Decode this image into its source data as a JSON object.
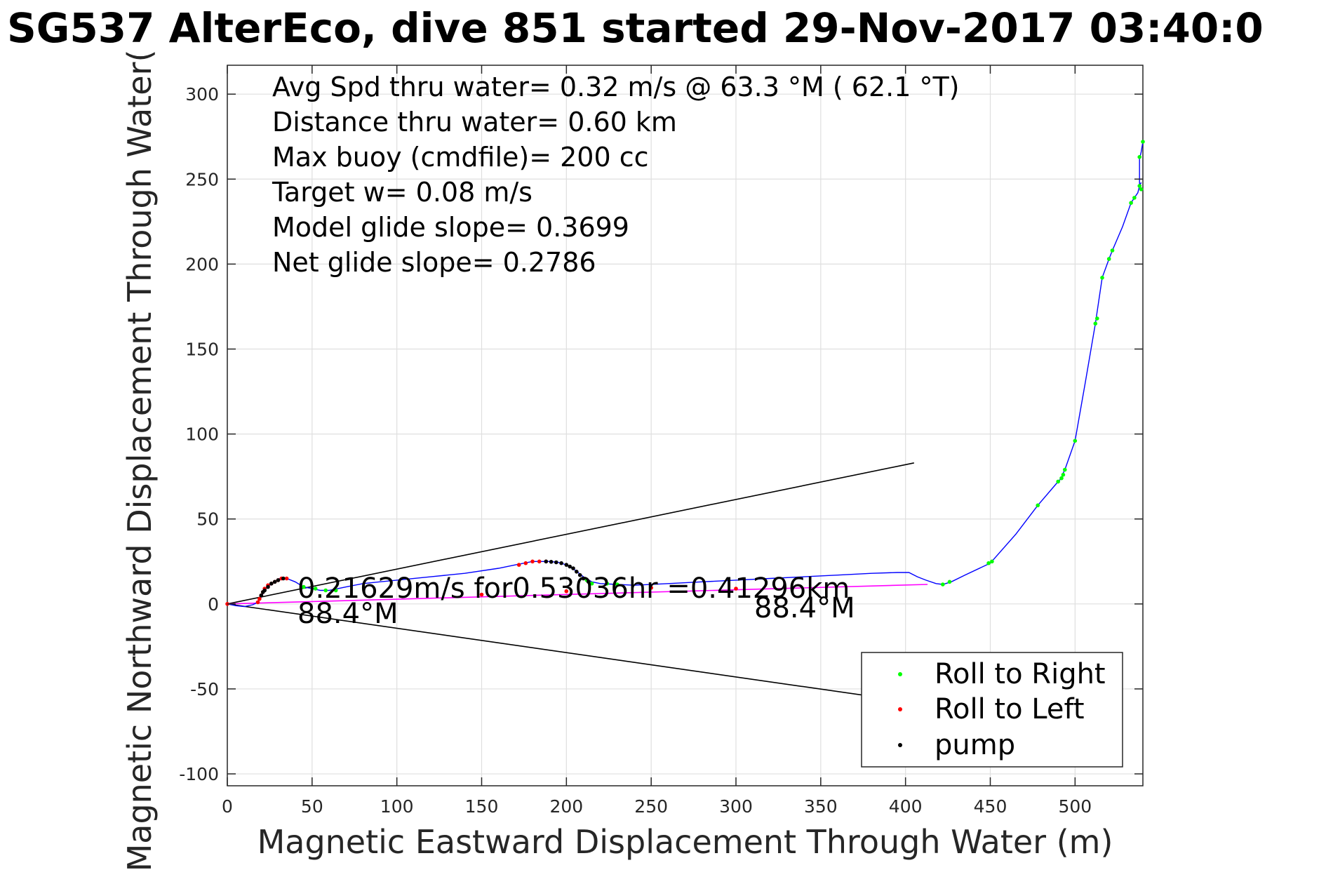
{
  "chart_data": {
    "type": "line",
    "title": "SG537 AlterEco, dive 851 started 29-Nov-2017 03:40:0",
    "xlabel": "Magnetic Eastward Displacement Through Water (m)",
    "ylabel": "Magnetic Northward Displacement Through Water(",
    "xlim": [
      0,
      540
    ],
    "ylim": [
      -107,
      317
    ],
    "xticks": [
      0,
      50,
      100,
      150,
      200,
      250,
      300,
      350,
      400,
      450,
      500
    ],
    "yticks": [
      -100,
      -50,
      0,
      50,
      100,
      150,
      200,
      250,
      300
    ],
    "grid": true,
    "legend_position": "bottom-right",
    "stats_text": [
      "Avg Spd thru water=  0.32 m/s @  63.3 °M ( 62.1 °T)",
      "Distance thru water=  0.60 km",
      "Max buoy (cmdfile)= 200 cc",
      "Target w= 0.08 m/s",
      "Model glide slope= 0.3699",
      "Net glide slope= 0.2786"
    ],
    "annotations": {
      "speed": "0.21629m/s for0.53036hr =0.41296km",
      "heading_left": "88.4°M",
      "heading_right": "88.4°M"
    },
    "track": {
      "name": "",
      "color": "#0000ff",
      "points": [
        [
          0,
          0
        ],
        [
          5,
          -1
        ],
        [
          10,
          -1.5
        ],
        [
          15,
          -0.5
        ],
        [
          18,
          1
        ],
        [
          20,
          4
        ],
        [
          22,
          8
        ],
        [
          25,
          11
        ],
        [
          28,
          13
        ],
        [
          31,
          15
        ],
        [
          35,
          15
        ],
        [
          40,
          13
        ],
        [
          45,
          10
        ],
        [
          50,
          9
        ],
        [
          55,
          8
        ],
        [
          60,
          8
        ],
        [
          70,
          10
        ],
        [
          80,
          12
        ],
        [
          90,
          13
        ],
        [
          100,
          14
        ],
        [
          120,
          16
        ],
        [
          140,
          18
        ],
        [
          160,
          21
        ],
        [
          170,
          23
        ],
        [
          175,
          24
        ],
        [
          180,
          25
        ],
        [
          185,
          25
        ],
        [
          190,
          25
        ],
        [
          195,
          24.5
        ],
        [
          200,
          23
        ],
        [
          205,
          20
        ],
        [
          210,
          16
        ],
        [
          215,
          13
        ],
        [
          220,
          12
        ],
        [
          230,
          11.5
        ],
        [
          240,
          11
        ],
        [
          260,
          12
        ],
        [
          280,
          13
        ],
        [
          300,
          14
        ],
        [
          320,
          15
        ],
        [
          340,
          16
        ],
        [
          360,
          17
        ],
        [
          380,
          18
        ],
        [
          395,
          18.5
        ],
        [
          402,
          18.5
        ],
        [
          407,
          16
        ],
        [
          412,
          14
        ],
        [
          418,
          12
        ],
        [
          422,
          11.5
        ],
        [
          427,
          13
        ],
        [
          435,
          17
        ],
        [
          450,
          24
        ],
        [
          465,
          41
        ],
        [
          478,
          58
        ],
        [
          490,
          72
        ],
        [
          492,
          74
        ],
        [
          493,
          77
        ],
        [
          494,
          79
        ],
        [
          500,
          96
        ],
        [
          506,
          130
        ],
        [
          512,
          165
        ],
        [
          516,
          192
        ],
        [
          520,
          203
        ],
        [
          522,
          208
        ],
        [
          528,
          222
        ],
        [
          533,
          236
        ],
        [
          535,
          239
        ],
        [
          537,
          242
        ],
        [
          538,
          246
        ],
        [
          539,
          248
        ],
        [
          538,
          246
        ],
        [
          538,
          262
        ],
        [
          539,
          266
        ],
        [
          540,
          272
        ]
      ]
    },
    "depth_avg_line": {
      "name": "",
      "color": "#ff00ff",
      "points": [
        [
          0,
          0
        ],
        [
          413,
          11.5
        ]
      ]
    },
    "cone_lines": {
      "color": "#000000",
      "upper": [
        [
          0,
          0
        ],
        [
          405,
          83
        ]
      ],
      "lower": [
        [
          0,
          0
        ],
        [
          405,
          -58
        ]
      ]
    },
    "series": [
      {
        "name": "Roll to Right",
        "color": "#00ff00",
        "points": [
          [
            45,
            10
          ],
          [
            52,
            9
          ],
          [
            58,
            8
          ],
          [
            64,
            8
          ],
          [
            212,
            14
          ],
          [
            215,
            12
          ],
          [
            224,
            12
          ],
          [
            230,
            11.5
          ],
          [
            422,
            11.5
          ],
          [
            426,
            13
          ],
          [
            449,
            24
          ],
          [
            451,
            25
          ],
          [
            478,
            58
          ],
          [
            490,
            72
          ],
          [
            492,
            74
          ],
          [
            493,
            76
          ],
          [
            494,
            79
          ],
          [
            500,
            96
          ],
          [
            512,
            165
          ],
          [
            513,
            168
          ],
          [
            516,
            192
          ],
          [
            520,
            203
          ],
          [
            522,
            208
          ],
          [
            533,
            236
          ],
          [
            535,
            239
          ],
          [
            538,
            246
          ],
          [
            538,
            263
          ],
          [
            540,
            272
          ],
          [
            539,
            244
          ]
        ]
      },
      {
        "name": "Roll to Left",
        "color": "#ff0000",
        "points": [
          [
            0,
            0
          ],
          [
            18,
            1
          ],
          [
            19,
            3
          ],
          [
            20,
            5
          ],
          [
            21,
            7
          ],
          [
            22,
            9
          ],
          [
            24,
            11
          ],
          [
            26,
            12
          ],
          [
            28,
            13
          ],
          [
            30,
            14
          ],
          [
            32,
            15
          ],
          [
            35,
            15
          ],
          [
            172,
            23
          ],
          [
            176,
            24
          ],
          [
            180,
            25
          ],
          [
            184,
            25
          ],
          [
            188,
            25
          ],
          [
            150,
            5.5
          ],
          [
            200,
            7.5
          ],
          [
            250,
            9.5
          ],
          [
            300,
            9
          ]
        ]
      },
      {
        "name": "pump",
        "color": "#000000",
        "points": [
          [
            20,
            5
          ],
          [
            21,
            7
          ],
          [
            22,
            8
          ],
          [
            24,
            10
          ],
          [
            26,
            12
          ],
          [
            28,
            13
          ],
          [
            30,
            14
          ],
          [
            33,
            15
          ],
          [
            188,
            25
          ],
          [
            191,
            24.8
          ],
          [
            194,
            24.5
          ],
          [
            197,
            24
          ],
          [
            200,
            23
          ],
          [
            202,
            22
          ],
          [
            204,
            21
          ],
          [
            206,
            19
          ],
          [
            208,
            17
          ],
          [
            210,
            15
          ],
          [
            213,
            13
          ]
        ]
      }
    ]
  }
}
